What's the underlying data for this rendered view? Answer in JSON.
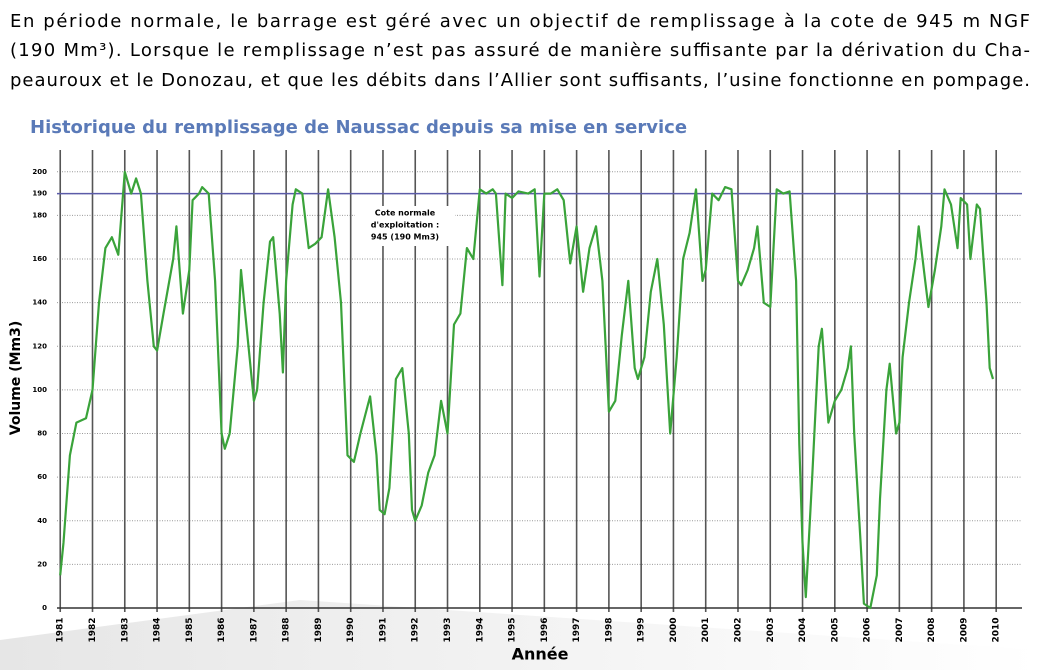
{
  "paragraph": [
    "En période normale, le barrage est géré avec un objectif de remplissage à la cote de 945 m NGF",
    "(190 Mm³). Lorsque le remplissage n’est pas assuré de manière suffisante par la dérivation du Cha-",
    "peauroux et le Donozau, et que les débits dans l’Allier sont suffisants, l’usine fonctionne en pompage."
  ],
  "chart_data": {
    "type": "line",
    "title": "Historique du remplissage de Naussac depuis sa mise en service",
    "xlabel": "Année",
    "ylabel": "Volume (Mm3)",
    "x": [
      1981.0,
      1981.1,
      1981.3,
      1981.5,
      1981.8,
      1982.0,
      1982.2,
      1982.4,
      1982.6,
      1982.8,
      1983.0,
      1983.2,
      1983.35,
      1983.5,
      1983.7,
      1983.9,
      1984.0,
      1984.2,
      1984.5,
      1984.6,
      1984.8,
      1985.0,
      1985.1,
      1985.3,
      1985.4,
      1985.6,
      1985.8,
      1986.0,
      1986.1,
      1986.25,
      1986.5,
      1986.6,
      1986.8,
      1987.0,
      1987.1,
      1987.3,
      1987.5,
      1987.6,
      1987.8,
      1987.9,
      1988.0,
      1988.2,
      1988.3,
      1988.5,
      1988.7,
      1988.9,
      1989.1,
      1989.3,
      1989.5,
      1989.7,
      1989.9,
      1990.1,
      1990.3,
      1990.6,
      1990.8,
      1990.9,
      1991.05,
      1991.2,
      1991.4,
      1991.6,
      1991.8,
      1991.9,
      1992.0,
      1992.2,
      1992.4,
      1992.6,
      1992.8,
      1993.0,
      1993.2,
      1993.4,
      1993.6,
      1993.8,
      1994.0,
      1994.2,
      1994.4,
      1994.5,
      1994.7,
      1994.8,
      1995.0,
      1995.2,
      1995.5,
      1995.7,
      1995.85,
      1996.0,
      1996.2,
      1996.4,
      1996.6,
      1996.8,
      1997.0,
      1997.2,
      1997.4,
      1997.6,
      1997.8,
      1998.0,
      1998.2,
      1998.4,
      1998.6,
      1998.8,
      1998.9,
      1999.1,
      1999.3,
      1999.5,
      1999.7,
      1999.9,
      2000.1,
      2000.3,
      2000.5,
      2000.7,
      2000.9,
      2001.0,
      2001.2,
      2001.4,
      2001.6,
      2001.8,
      2002.0,
      2002.1,
      2002.3,
      2002.5,
      2002.6,
      2002.8,
      2003.0,
      2003.2,
      2003.4,
      2003.6,
      2003.8,
      2003.9,
      2004.0,
      2004.1,
      2004.3,
      2004.5,
      2004.6,
      2004.8,
      2005.0,
      2005.2,
      2005.4,
      2005.5,
      2005.6,
      2005.8,
      2005.9,
      2006.1,
      2006.3,
      2006.4,
      2006.6,
      2006.7,
      2006.9,
      2007.0,
      2007.1,
      2007.3,
      2007.5,
      2007.6,
      2007.8,
      2007.9,
      2008.1,
      2008.3,
      2008.4,
      2008.6,
      2008.8,
      2008.9,
      2009.1,
      2009.2,
      2009.4,
      2009.5,
      2009.7,
      2009.8,
      2009.9
    ],
    "values": [
      15,
      30,
      70,
      85,
      87,
      100,
      140,
      165,
      170,
      162,
      200,
      190,
      197,
      190,
      150,
      120,
      118,
      135,
      160,
      175,
      135,
      155,
      187,
      190,
      193,
      190,
      150,
      80,
      73,
      80,
      120,
      155,
      125,
      95,
      100,
      140,
      168,
      170,
      135,
      108,
      150,
      185,
      192,
      190,
      165,
      167,
      170,
      192,
      170,
      140,
      70,
      67,
      80,
      97,
      70,
      45,
      43,
      55,
      105,
      110,
      80,
      45,
      40,
      47,
      62,
      70,
      95,
      80,
      130,
      135,
      165,
      160,
      192,
      190,
      192,
      190,
      148,
      190,
      188,
      191,
      190,
      192,
      152,
      190,
      190,
      192,
      187,
      158,
      175,
      145,
      165,
      175,
      150,
      90,
      95,
      125,
      150,
      110,
      105,
      115,
      145,
      160,
      130,
      80,
      115,
      160,
      172,
      192,
      150,
      155,
      190,
      187,
      193,
      192,
      150,
      148,
      155,
      165,
      175,
      140,
      138,
      192,
      190,
      191,
      150,
      75,
      30,
      5,
      60,
      120,
      128,
      85,
      95,
      100,
      110,
      120,
      80,
      30,
      2,
      0,
      15,
      50,
      100,
      112,
      80,
      85,
      115,
      140,
      160,
      175,
      150,
      138,
      155,
      175,
      192,
      185,
      165,
      188,
      185,
      160,
      185,
      183,
      140,
      110,
      105
    ],
    "color": "#3aa33a",
    "xlim": [
      1980.9,
      2010.8
    ],
    "xticks": [
      1981,
      1982,
      1983,
      1984,
      1985,
      1986,
      1987,
      1988,
      1989,
      1990,
      1991,
      1992,
      1993,
      1994,
      1995,
      1996,
      1997,
      1998,
      1999,
      2000,
      2001,
      2002,
      2003,
      2004,
      2005,
      2006,
      2007,
      2008,
      2009,
      2010
    ],
    "ylim": [
      0,
      210
    ],
    "yticks": [
      0,
      20,
      40,
      60,
      80,
      100,
      120,
      140,
      160,
      180,
      190,
      200
    ],
    "grid": true,
    "reference_line": {
      "value": 190,
      "color": "#5b5ba8"
    },
    "annotation": [
      "Cote normale",
      "d'exploitation :",
      "945 (190 Mm3)"
    ]
  }
}
